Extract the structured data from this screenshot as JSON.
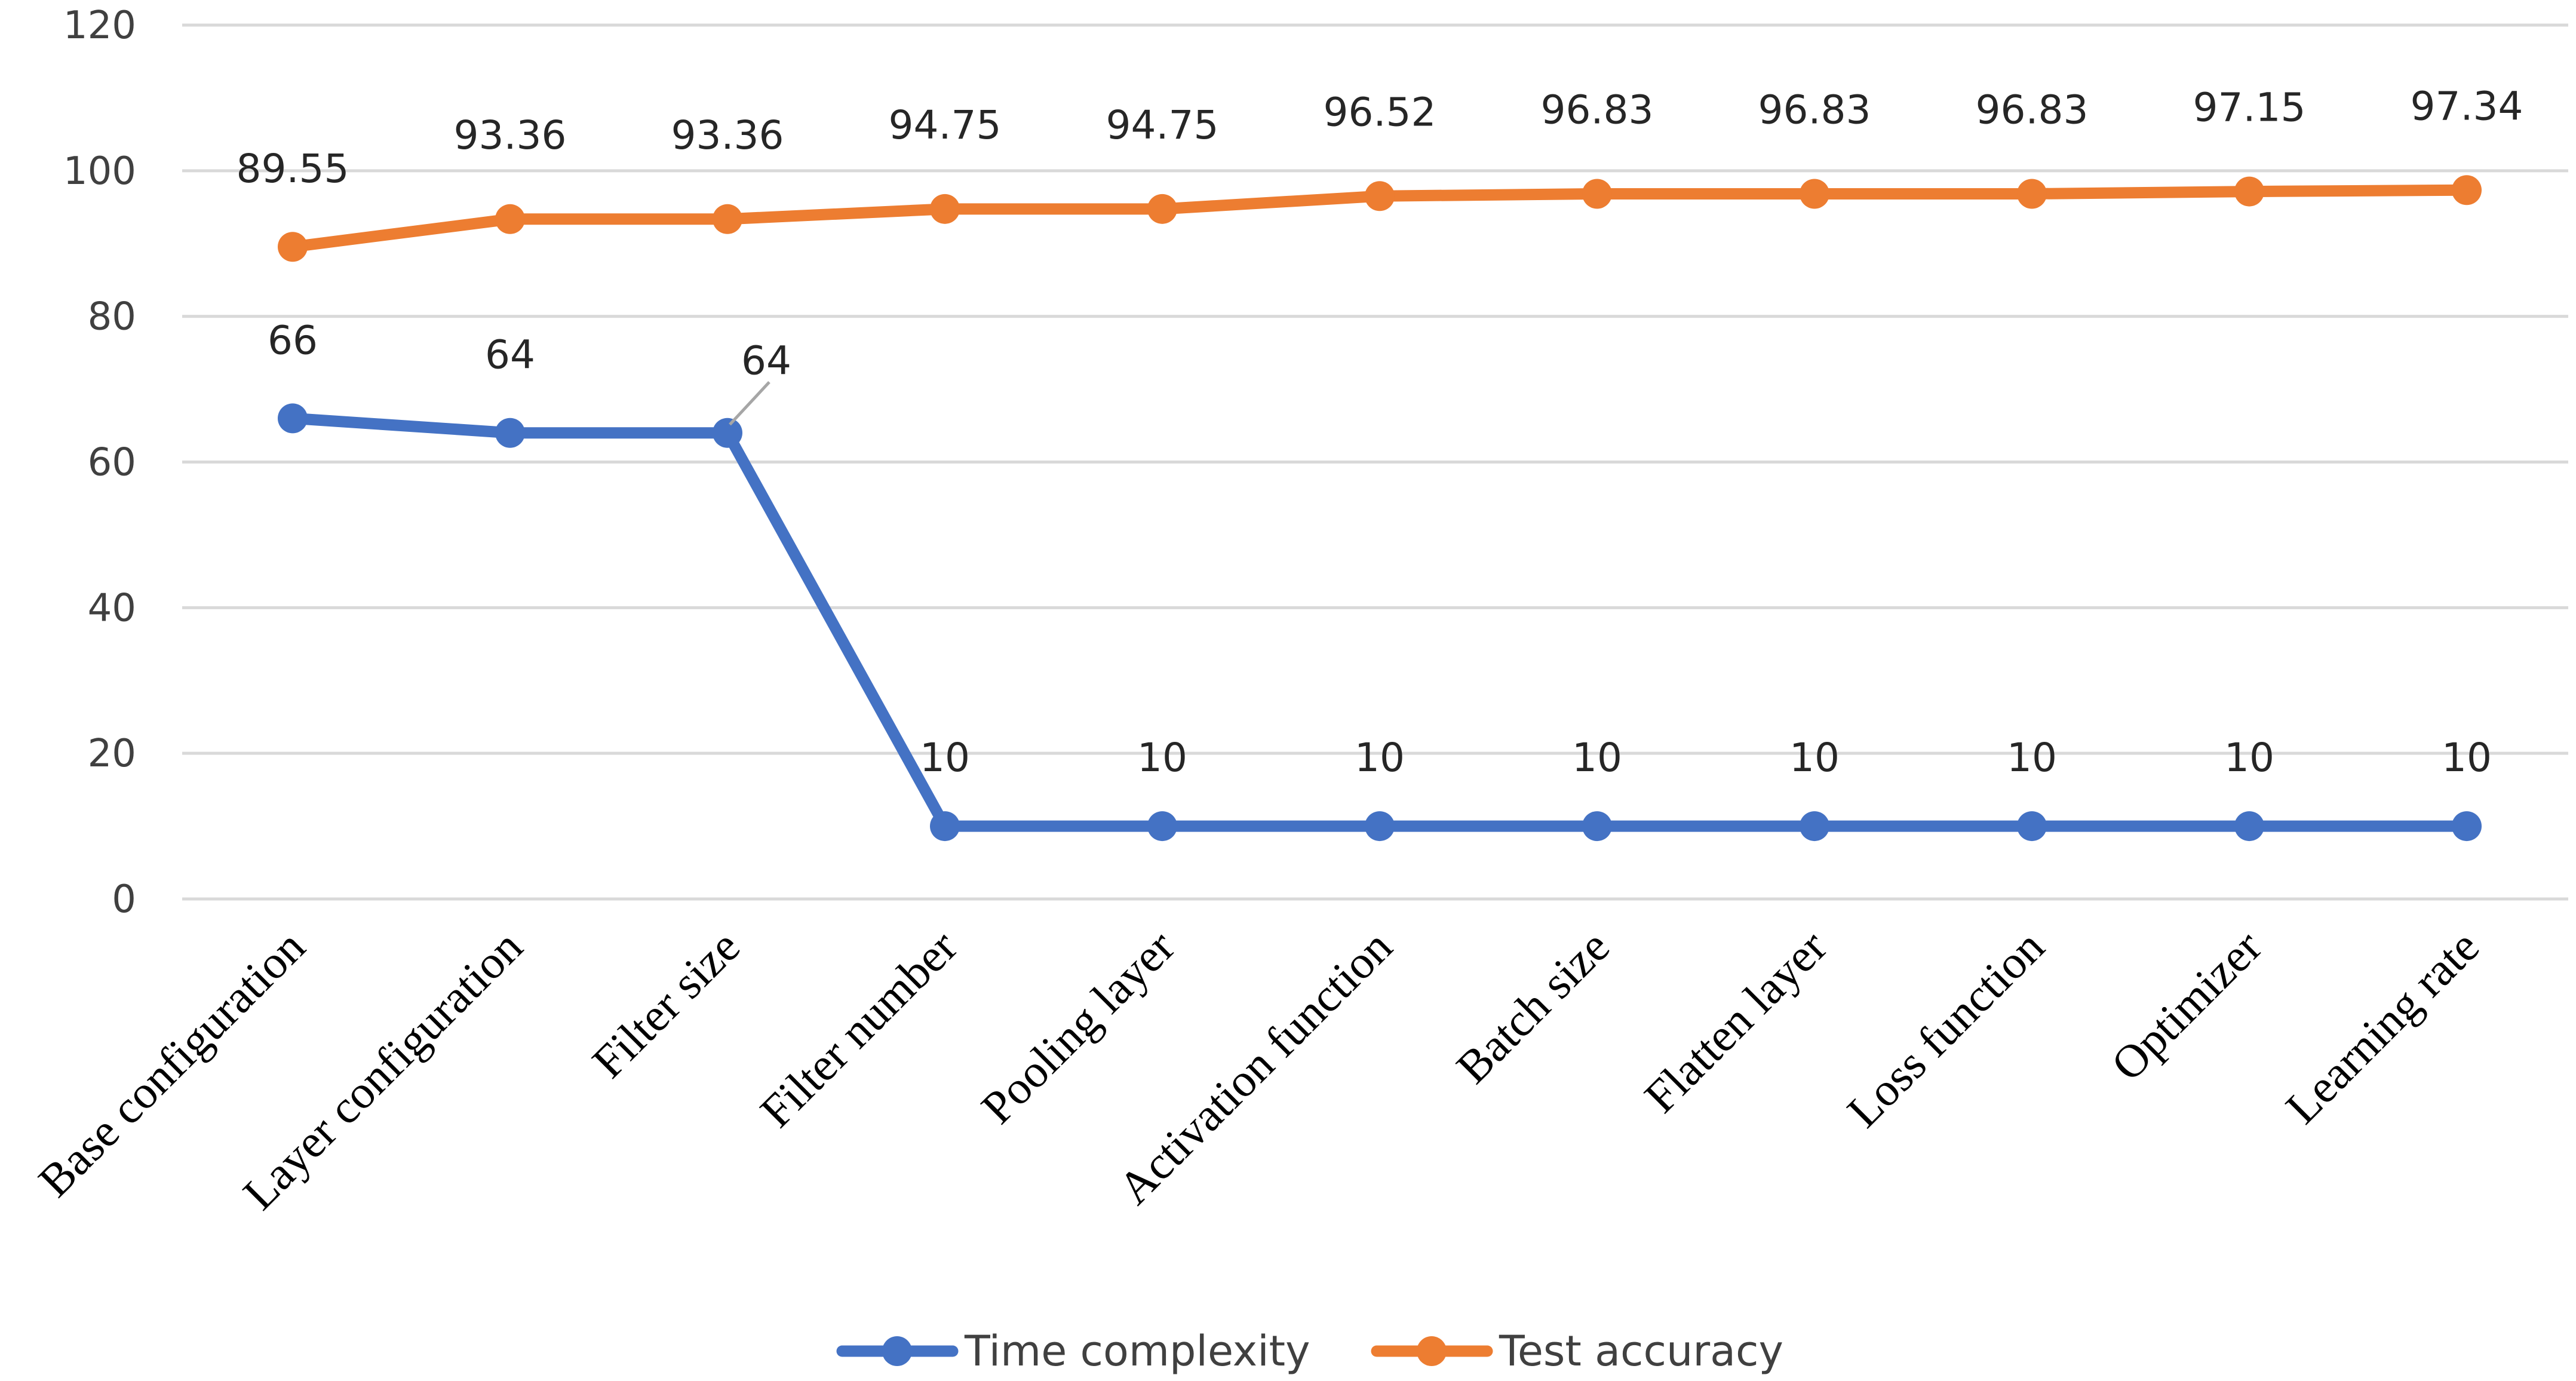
{
  "chart_data": {
    "type": "line",
    "title": "",
    "xlabel": "",
    "ylabel": "",
    "ylim": [
      0,
      120
    ],
    "yticks": [
      0,
      20,
      40,
      60,
      80,
      100,
      120
    ],
    "grid": true,
    "legend_position": "bottom",
    "categories": [
      "Base configuration",
      "Layer configuration",
      "Filter size",
      "Filter number",
      "Pooling layer",
      "Activation function",
      "Batch size",
      "Flatten layer",
      "Loss function",
      "Optimizer",
      "Learning rate"
    ],
    "series": [
      {
        "name": "Time complexity",
        "color": "#4472c4",
        "values": [
          66,
          64,
          64,
          10,
          10,
          10,
          10,
          10,
          10,
          10,
          10
        ],
        "labels": [
          "66",
          "64",
          "64",
          "10",
          "10",
          "10",
          "10",
          "10",
          "10",
          "10",
          "10"
        ]
      },
      {
        "name": "Test accuracy",
        "color": "#ed7d31",
        "values": [
          89.55,
          93.36,
          93.36,
          94.75,
          94.75,
          96.52,
          96.83,
          96.83,
          96.83,
          97.15,
          97.34
        ],
        "labels": [
          "89.55",
          "93.36",
          "93.36",
          "94.75",
          "94.75",
          "96.52",
          "96.83",
          "96.83",
          "96.83",
          "97.15",
          "97.34"
        ]
      }
    ]
  }
}
